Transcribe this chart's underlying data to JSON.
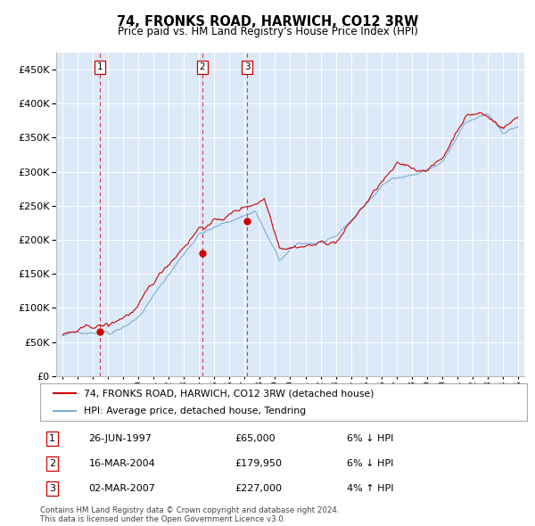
{
  "title": "74, FRONKS ROAD, HARWICH, CO12 3RW",
  "subtitle": "Price paid vs. HM Land Registry's House Price Index (HPI)",
  "legend_line1": "74, FRONKS ROAD, HARWICH, CO12 3RW (detached house)",
  "legend_line2": "HPI: Average price, detached house, Tendring",
  "transactions": [
    {
      "num": 1,
      "date": "26-JUN-1997",
      "price": 65000,
      "pct": "6%",
      "dir": "↓",
      "tx_x": 1997.49,
      "tx_y": 65000
    },
    {
      "num": 2,
      "date": "16-MAR-2004",
      "price": 179950,
      "pct": "6%",
      "dir": "↓",
      "tx_x": 2004.21,
      "tx_y": 179950
    },
    {
      "num": 3,
      "date": "02-MAR-2007",
      "price": 227000,
      "pct": "4%",
      "dir": "↑",
      "tx_x": 2007.17,
      "tx_y": 227000
    }
  ],
  "footer_line1": "Contains HM Land Registry data © Crown copyright and database right 2024.",
  "footer_line2": "This data is licensed under the Open Government Licence v3.0.",
  "plot_bg_color": "#dce9f8",
  "red_line_color": "#cc0000",
  "blue_line_color": "#7aadd4",
  "vline_color": "#cc0000",
  "grid_color": "#ffffff",
  "yticks": [
    0,
    50000,
    100000,
    150000,
    200000,
    250000,
    300000,
    350000,
    400000,
    450000
  ],
  "ylim": [
    0,
    475000
  ],
  "xlim_start": 1994.6,
  "xlim_end": 2025.4
}
